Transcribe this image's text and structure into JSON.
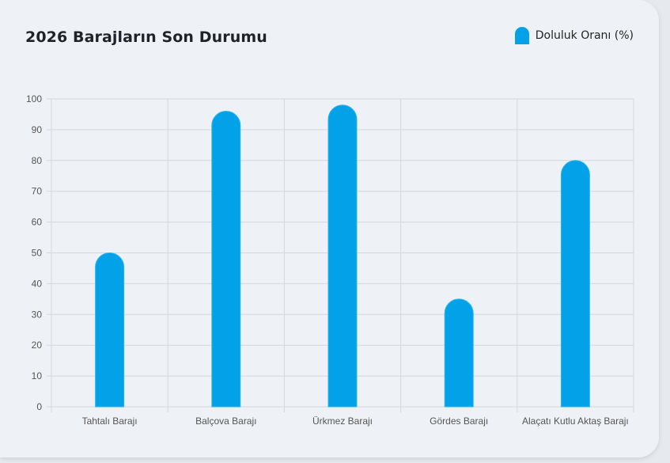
{
  "chart_data": {
    "type": "bar",
    "title": "2026 Barajların Son Durumu",
    "categories": [
      "Tahtalı Barajı",
      "Balçova Barajı",
      "Ürkmez Barajı",
      "Gördes Barajı",
      "Alaçatı Kutlu Aktaş Barajı"
    ],
    "series": [
      {
        "name": "Doluluk Oranı (%)",
        "values": [
          50,
          96,
          98,
          35,
          80
        ]
      }
    ],
    "ylim": [
      0,
      100
    ],
    "yticks": [
      0,
      10,
      20,
      30,
      40,
      50,
      60,
      70,
      80,
      90,
      100
    ],
    "grid": true,
    "legend_position": "top-right",
    "colors": {
      "bar": "#03a2e8",
      "bar_border": "#2bb6f0",
      "grid": "#d4d7dc"
    }
  }
}
